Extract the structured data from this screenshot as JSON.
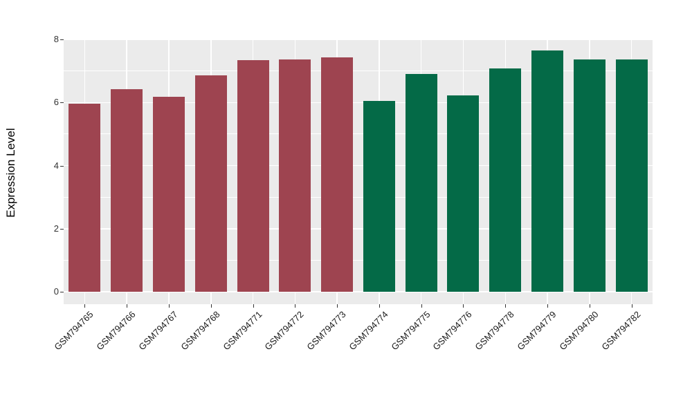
{
  "chart_data": {
    "type": "bar",
    "title": "",
    "xlabel": "",
    "ylabel": "Expression Level",
    "categories": [
      "GSM794765",
      "GSM794766",
      "GSM794767",
      "GSM794768",
      "GSM794771",
      "GSM794772",
      "GSM794773",
      "GSM794774",
      "GSM794775",
      "GSM794776",
      "GSM794778",
      "GSM794779",
      "GSM794780",
      "GSM794782"
    ],
    "values": [
      5.96,
      6.42,
      6.17,
      6.85,
      7.34,
      7.37,
      7.44,
      6.06,
      6.91,
      6.22,
      7.09,
      7.64,
      7.36,
      7.36
    ],
    "bar_colors": [
      "#9E4450",
      "#9E4450",
      "#9E4450",
      "#9E4450",
      "#9E4450",
      "#9E4450",
      "#9E4450",
      "#046A47",
      "#046A47",
      "#046A47",
      "#046A47",
      "#046A47",
      "#046A47",
      "#046A47"
    ],
    "group_colors": {
      "red_group": "#9E4450",
      "green_group": "#046A47"
    },
    "ylim": [
      0,
      8
    ],
    "yticks": [
      0,
      2,
      4,
      6,
      8
    ],
    "yminorticks": [
      1,
      3,
      5,
      7
    ],
    "grid": true,
    "legend": "none",
    "panel_bg": "#EBEBEB",
    "grid_color": "#FFFFFF",
    "tick_color": "#333333",
    "text_color": "#1a1a1a",
    "x_label_rotation_deg": 45
  }
}
